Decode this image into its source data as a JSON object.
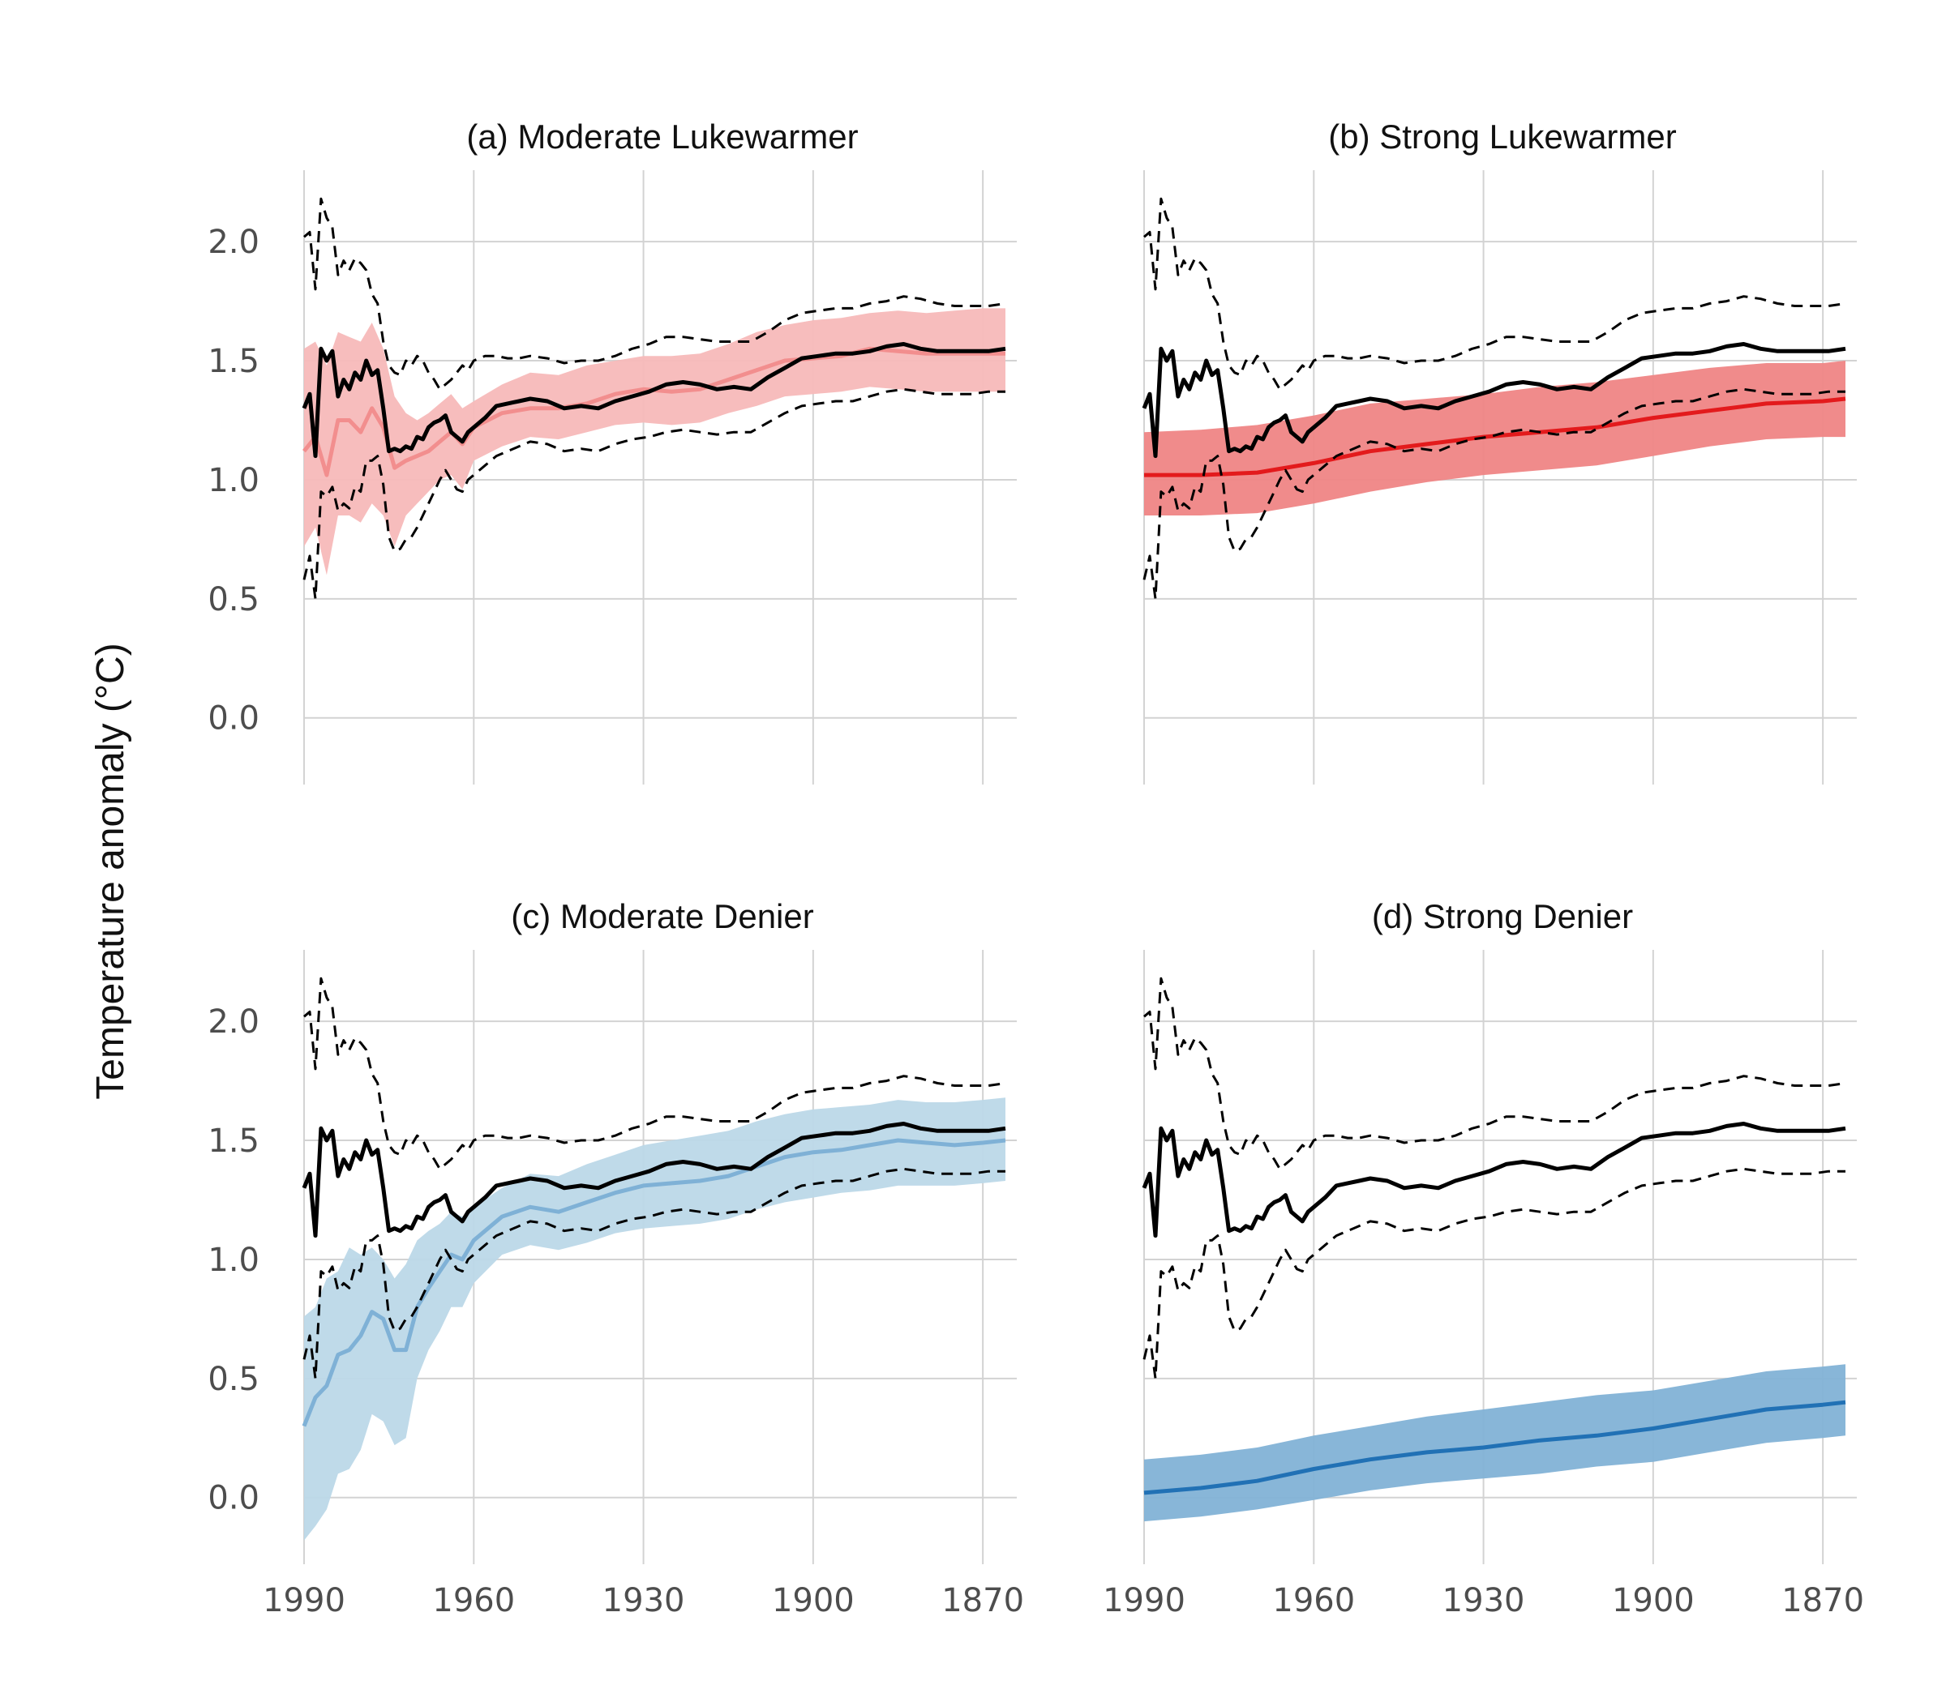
{
  "figure": {
    "ylabel": "Temperature anomaly (°C)"
  },
  "chart_data": [
    {
      "type": "line",
      "title": "(a) Moderate Lukewarmer",
      "xlim": [
        1990,
        1864
      ],
      "ylim": [
        -0.28,
        2.3
      ],
      "xticks": [
        1990,
        1960,
        1930,
        1900,
        1870
      ],
      "yticks": [
        0.0,
        0.5,
        1.0,
        1.5,
        2.0
      ],
      "show_xtick_labels": false,
      "grid": true,
      "ensemble": {
        "name": "",
        "color": "#f28e8e",
        "band_color": "#f7b9b9",
        "band_opacity": 0.95,
        "x": [
          1990,
          1988,
          1986,
          1984,
          1982,
          1980,
          1978,
          1976,
          1974,
          1972,
          1970,
          1968,
          1966,
          1964,
          1962,
          1960,
          1955,
          1950,
          1945,
          1940,
          1935,
          1930,
          1925,
          1920,
          1915,
          1910,
          1905,
          1900,
          1895,
          1890,
          1885,
          1880,
          1875,
          1870,
          1866
        ],
        "mean": [
          1.12,
          1.18,
          1.02,
          1.25,
          1.25,
          1.2,
          1.3,
          1.22,
          1.05,
          1.08,
          1.1,
          1.12,
          1.16,
          1.2,
          1.15,
          1.22,
          1.28,
          1.3,
          1.3,
          1.32,
          1.36,
          1.38,
          1.37,
          1.38,
          1.42,
          1.46,
          1.5,
          1.51,
          1.52,
          1.55,
          1.54,
          1.53,
          1.53,
          1.53,
          1.53
        ],
        "upper": [
          1.55,
          1.58,
          1.48,
          1.62,
          1.6,
          1.58,
          1.66,
          1.55,
          1.35,
          1.28,
          1.25,
          1.28,
          1.32,
          1.36,
          1.3,
          1.33,
          1.4,
          1.45,
          1.44,
          1.48,
          1.5,
          1.52,
          1.52,
          1.53,
          1.57,
          1.62,
          1.65,
          1.67,
          1.68,
          1.7,
          1.71,
          1.7,
          1.71,
          1.72,
          1.72
        ],
        "lower": [
          0.72,
          0.8,
          0.6,
          0.85,
          0.85,
          0.82,
          0.9,
          0.85,
          0.72,
          0.85,
          0.9,
          0.95,
          1.0,
          1.02,
          0.96,
          1.08,
          1.14,
          1.18,
          1.17,
          1.2,
          1.23,
          1.24,
          1.23,
          1.24,
          1.28,
          1.31,
          1.35,
          1.36,
          1.37,
          1.39,
          1.38,
          1.37,
          1.37,
          1.37,
          1.37
        ]
      }
    },
    {
      "type": "line",
      "title": "(b) Strong Lukewarmer",
      "xlim": [
        1990,
        1864
      ],
      "ylim": [
        -0.28,
        2.3
      ],
      "xticks": [
        1990,
        1960,
        1930,
        1900,
        1870
      ],
      "yticks": [
        0.0,
        0.5,
        1.0,
        1.5,
        2.0
      ],
      "show_xtick_labels": false,
      "grid": true,
      "ensemble": {
        "name": "",
        "color": "#e31a1c",
        "band_color": "#ef8585",
        "band_opacity": 0.95,
        "x": [
          1990,
          1980,
          1970,
          1960,
          1950,
          1940,
          1930,
          1920,
          1910,
          1900,
          1890,
          1880,
          1870,
          1866
        ],
        "mean": [
          1.02,
          1.02,
          1.03,
          1.07,
          1.12,
          1.15,
          1.18,
          1.2,
          1.22,
          1.26,
          1.29,
          1.32,
          1.33,
          1.34
        ],
        "upper": [
          1.2,
          1.21,
          1.23,
          1.27,
          1.32,
          1.34,
          1.36,
          1.39,
          1.41,
          1.44,
          1.47,
          1.49,
          1.49,
          1.5
        ],
        "lower": [
          0.85,
          0.85,
          0.86,
          0.9,
          0.95,
          0.99,
          1.02,
          1.04,
          1.06,
          1.1,
          1.14,
          1.17,
          1.18,
          1.18
        ]
      }
    },
    {
      "type": "line",
      "title": "(c) Moderate Denier",
      "xlim": [
        1990,
        1864
      ],
      "ylim": [
        -0.28,
        2.3
      ],
      "xticks": [
        1990,
        1960,
        1930,
        1900,
        1870
      ],
      "yticks": [
        0.0,
        0.5,
        1.0,
        1.5,
        2.0
      ],
      "show_xtick_labels": true,
      "grid": true,
      "ensemble": {
        "name": "",
        "color": "#7fb1d6",
        "band_color": "#bcd8e8",
        "band_opacity": 0.95,
        "x": [
          1990,
          1988,
          1986,
          1984,
          1982,
          1980,
          1978,
          1976,
          1974,
          1972,
          1970,
          1968,
          1966,
          1964,
          1962,
          1960,
          1955,
          1950,
          1945,
          1940,
          1935,
          1930,
          1925,
          1920,
          1915,
          1910,
          1905,
          1900,
          1895,
          1890,
          1885,
          1880,
          1875,
          1870,
          1866
        ],
        "mean": [
          0.3,
          0.42,
          0.47,
          0.6,
          0.62,
          0.68,
          0.78,
          0.75,
          0.62,
          0.62,
          0.8,
          0.88,
          0.95,
          1.02,
          1.0,
          1.08,
          1.18,
          1.22,
          1.2,
          1.24,
          1.28,
          1.31,
          1.32,
          1.33,
          1.35,
          1.39,
          1.43,
          1.45,
          1.46,
          1.48,
          1.5,
          1.49,
          1.48,
          1.49,
          1.5
        ],
        "upper": [
          0.76,
          0.8,
          0.92,
          0.95,
          1.05,
          1.02,
          1.05,
          1.0,
          0.92,
          0.98,
          1.08,
          1.12,
          1.15,
          1.2,
          1.18,
          1.22,
          1.3,
          1.36,
          1.35,
          1.4,
          1.44,
          1.48,
          1.5,
          1.52,
          1.54,
          1.58,
          1.61,
          1.63,
          1.64,
          1.65,
          1.67,
          1.66,
          1.66,
          1.67,
          1.68
        ],
        "lower": [
          -0.18,
          -0.12,
          -0.05,
          0.1,
          0.12,
          0.2,
          0.35,
          0.32,
          0.22,
          0.25,
          0.5,
          0.62,
          0.7,
          0.8,
          0.8,
          0.9,
          1.02,
          1.06,
          1.04,
          1.07,
          1.11,
          1.13,
          1.14,
          1.15,
          1.17,
          1.21,
          1.24,
          1.26,
          1.28,
          1.29,
          1.31,
          1.31,
          1.31,
          1.32,
          1.33
        ]
      }
    },
    {
      "type": "line",
      "title": "(d) Strong Denier",
      "xlim": [
        1990,
        1864
      ],
      "ylim": [
        -0.28,
        2.3
      ],
      "xticks": [
        1990,
        1960,
        1930,
        1900,
        1870
      ],
      "yticks": [
        0.0,
        0.5,
        1.0,
        1.5,
        2.0
      ],
      "show_xtick_labels": true,
      "grid": true,
      "ensemble": {
        "name": "",
        "color": "#2171b5",
        "band_color": "#82b2d6",
        "band_opacity": 0.95,
        "x": [
          1990,
          1980,
          1970,
          1960,
          1950,
          1940,
          1930,
          1920,
          1910,
          1900,
          1890,
          1880,
          1870,
          1866
        ],
        "mean": [
          0.02,
          0.04,
          0.07,
          0.12,
          0.16,
          0.19,
          0.21,
          0.24,
          0.26,
          0.29,
          0.33,
          0.37,
          0.39,
          0.4
        ],
        "upper": [
          0.16,
          0.18,
          0.21,
          0.26,
          0.3,
          0.34,
          0.37,
          0.4,
          0.43,
          0.45,
          0.49,
          0.53,
          0.55,
          0.56
        ],
        "lower": [
          -0.1,
          -0.08,
          -0.05,
          -0.01,
          0.03,
          0.06,
          0.08,
          0.1,
          0.13,
          0.15,
          0.19,
          0.23,
          0.25,
          0.26
        ]
      }
    }
  ],
  "observed": {
    "name": "",
    "color": "#000000",
    "x": [
      1990,
      1989,
      1988,
      1987,
      1986,
      1985,
      1984,
      1983,
      1982,
      1981,
      1980,
      1979,
      1978,
      1977,
      1976,
      1975,
      1974,
      1973,
      1972,
      1971,
      1970,
      1969,
      1968,
      1967,
      1966,
      1965,
      1964,
      1963,
      1962,
      1961,
      1960,
      1958,
      1956,
      1954,
      1952,
      1950,
      1947,
      1944,
      1941,
      1938,
      1935,
      1932,
      1929,
      1926,
      1923,
      1920,
      1917,
      1914,
      1911,
      1908,
      1905,
      1902,
      1899,
      1896,
      1893,
      1890,
      1887,
      1884,
      1881,
      1878,
      1875,
      1872,
      1869,
      1866
    ],
    "mean": [
      1.3,
      1.36,
      1.1,
      1.55,
      1.5,
      1.54,
      1.35,
      1.42,
      1.38,
      1.45,
      1.42,
      1.5,
      1.44,
      1.46,
      1.3,
      1.12,
      1.13,
      1.12,
      1.14,
      1.13,
      1.18,
      1.17,
      1.22,
      1.24,
      1.25,
      1.27,
      1.2,
      1.18,
      1.16,
      1.2,
      1.22,
      1.26,
      1.31,
      1.32,
      1.33,
      1.34,
      1.33,
      1.3,
      1.31,
      1.3,
      1.33,
      1.35,
      1.37,
      1.4,
      1.41,
      1.4,
      1.38,
      1.39,
      1.38,
      1.43,
      1.47,
      1.51,
      1.52,
      1.53,
      1.53,
      1.54,
      1.56,
      1.57,
      1.55,
      1.54,
      1.54,
      1.54,
      1.54,
      1.55
    ],
    "upper": [
      2.02,
      2.04,
      1.8,
      2.18,
      2.1,
      2.06,
      1.86,
      1.92,
      1.88,
      1.93,
      1.91,
      1.88,
      1.78,
      1.74,
      1.58,
      1.48,
      1.45,
      1.44,
      1.5,
      1.48,
      1.52,
      1.5,
      1.45,
      1.42,
      1.38,
      1.4,
      1.42,
      1.45,
      1.48,
      1.46,
      1.5,
      1.52,
      1.52,
      1.51,
      1.51,
      1.52,
      1.51,
      1.49,
      1.5,
      1.5,
      1.52,
      1.55,
      1.57,
      1.6,
      1.6,
      1.59,
      1.58,
      1.58,
      1.58,
      1.62,
      1.67,
      1.7,
      1.71,
      1.72,
      1.72,
      1.74,
      1.75,
      1.77,
      1.76,
      1.74,
      1.73,
      1.73,
      1.73,
      1.74
    ],
    "lower": [
      0.58,
      0.68,
      0.5,
      0.95,
      0.93,
      0.97,
      0.87,
      0.9,
      0.88,
      0.97,
      0.95,
      1.08,
      1.08,
      1.1,
      0.98,
      0.76,
      0.7,
      0.71,
      0.75,
      0.76,
      0.8,
      0.85,
      0.9,
      0.95,
      1.0,
      1.04,
      1.0,
      0.96,
      0.95,
      1.0,
      1.02,
      1.06,
      1.1,
      1.12,
      1.14,
      1.16,
      1.15,
      1.12,
      1.13,
      1.12,
      1.15,
      1.17,
      1.18,
      1.2,
      1.21,
      1.2,
      1.19,
      1.2,
      1.2,
      1.24,
      1.28,
      1.31,
      1.32,
      1.33,
      1.33,
      1.35,
      1.37,
      1.38,
      1.37,
      1.36,
      1.36,
      1.36,
      1.37,
      1.37
    ]
  }
}
